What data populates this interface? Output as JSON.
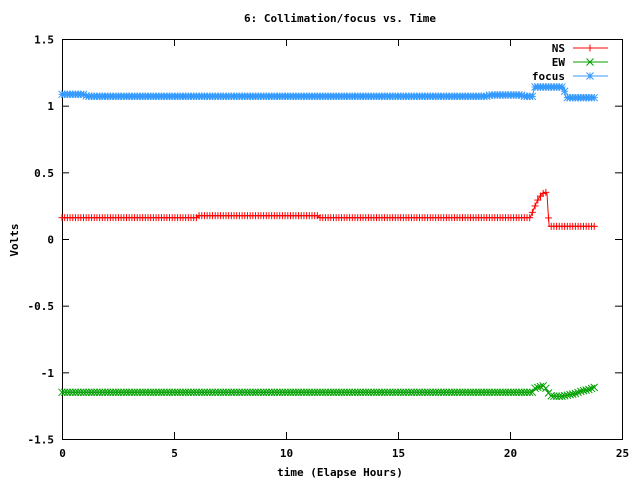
{
  "chart_data": {
    "type": "line",
    "title": "6: Collimation/focus vs. Time",
    "xlabel": "time (Elapse Hours)",
    "ylabel": "Volts",
    "xlim": [
      0,
      25
    ],
    "ylim": [
      -1.5,
      1.5
    ],
    "xticks": [
      "0",
      "5",
      "10",
      "15",
      "20",
      "25"
    ],
    "yticks": [
      "-1.5",
      "-1",
      "-0.5",
      "0",
      "0.5",
      "1",
      "1.5"
    ],
    "legend_position": "top-right",
    "grid": false,
    "series": [
      {
        "name": "NS",
        "color": "#ff0000",
        "marker": "plus",
        "points": [
          [
            0,
            0.16
          ],
          [
            6,
            0.16
          ],
          [
            6.1,
            0.175
          ],
          [
            11.4,
            0.175
          ],
          [
            11.5,
            0.16
          ],
          [
            20.9,
            0.16
          ],
          [
            21.0,
            0.2
          ],
          [
            21.1,
            0.24
          ],
          [
            21.2,
            0.28
          ],
          [
            21.3,
            0.31
          ],
          [
            21.4,
            0.33
          ],
          [
            21.5,
            0.345
          ],
          [
            21.6,
            0.35
          ],
          [
            21.65,
            0.34
          ],
          [
            21.7,
            0.2
          ],
          [
            21.75,
            0.095
          ],
          [
            23.8,
            0.095
          ]
        ]
      },
      {
        "name": "EW",
        "color": "#00a000",
        "marker": "cross",
        "points": [
          [
            0,
            -1.15
          ],
          [
            21.0,
            -1.15
          ],
          [
            21.1,
            -1.12
          ],
          [
            21.3,
            -1.11
          ],
          [
            21.5,
            -1.1
          ],
          [
            21.6,
            -1.12
          ],
          [
            21.7,
            -1.15
          ],
          [
            21.8,
            -1.175
          ],
          [
            22.0,
            -1.18
          ],
          [
            22.3,
            -1.18
          ],
          [
            22.6,
            -1.17
          ],
          [
            22.9,
            -1.16
          ],
          [
            23.2,
            -1.14
          ],
          [
            23.5,
            -1.13
          ],
          [
            23.8,
            -1.11
          ]
        ]
      },
      {
        "name": "focus",
        "color": "#3399ff",
        "marker": "star",
        "points": [
          [
            0,
            1.085
          ],
          [
            1.0,
            1.085
          ],
          [
            1.1,
            1.07
          ],
          [
            19.0,
            1.07
          ],
          [
            19.1,
            1.08
          ],
          [
            20.5,
            1.08
          ],
          [
            20.6,
            1.07
          ],
          [
            21.0,
            1.07
          ],
          [
            21.1,
            1.14
          ],
          [
            22.4,
            1.14
          ],
          [
            22.5,
            1.06
          ],
          [
            23.8,
            1.06
          ]
        ]
      }
    ]
  }
}
